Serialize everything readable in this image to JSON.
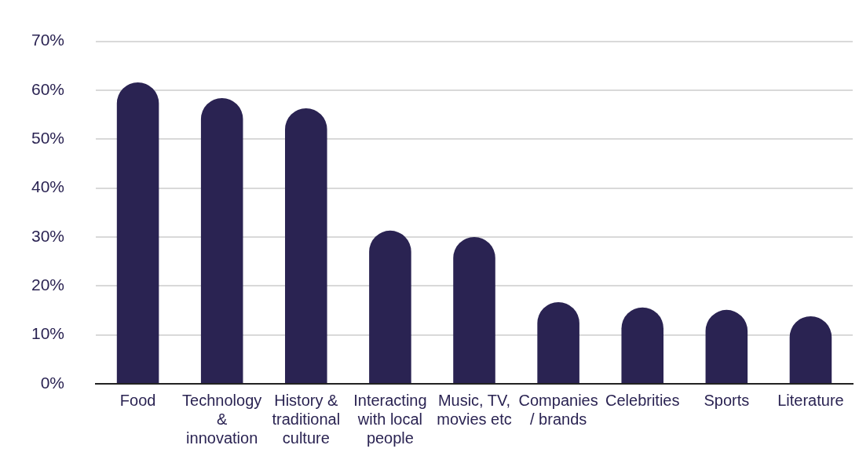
{
  "chart_data": {
    "type": "bar",
    "categories": [
      "Food",
      "Technology & innovation",
      "History & traditional culture",
      "Interacting with local people",
      "Music, TV, movies etc",
      "Companies / brands",
      "Celebrities",
      "Sports",
      "Literature"
    ],
    "values": [
      61.6,
      58.4,
      56.3,
      31.3,
      30,
      16.7,
      15.6,
      15.1,
      13.8
    ],
    "color": "#2a2352",
    "ylim": [
      0,
      70
    ],
    "yticks": [
      {
        "value": 0,
        "label": "0%"
      },
      {
        "value": 10,
        "label": "10%"
      },
      {
        "value": 20,
        "label": "20%"
      },
      {
        "value": 30,
        "label": "30%"
      },
      {
        "value": 40,
        "label": "40%"
      },
      {
        "value": 50,
        "label": "50%"
      },
      {
        "value": 60,
        "label": "60%"
      },
      {
        "value": 70,
        "label": "70%"
      }
    ],
    "grid": "y",
    "legend": false
  }
}
